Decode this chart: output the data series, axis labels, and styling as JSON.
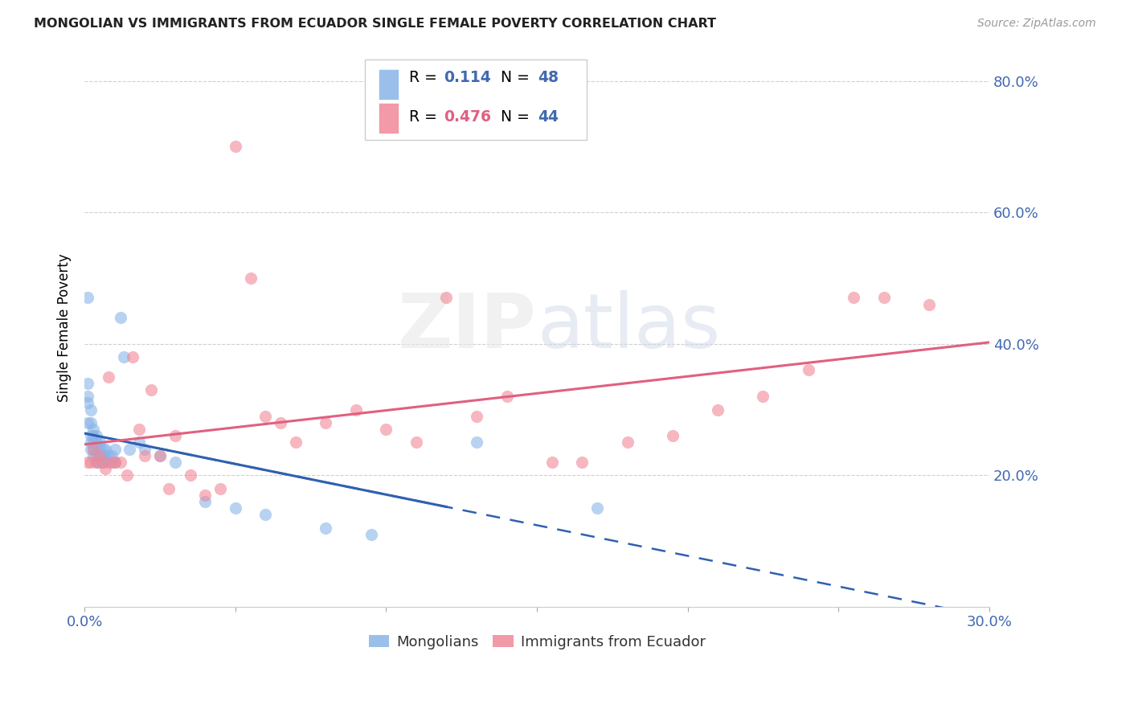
{
  "title": "MONGOLIAN VS IMMIGRANTS FROM ECUADOR SINGLE FEMALE POVERTY CORRELATION CHART",
  "source": "Source: ZipAtlas.com",
  "ylabel": "Single Female Poverty",
  "xlim": [
    0.0,
    0.3
  ],
  "ylim": [
    0.0,
    0.85
  ],
  "right_yticklabels": [
    "20.0%",
    "40.0%",
    "60.0%",
    "80.0%"
  ],
  "right_yticks": [
    0.2,
    0.4,
    0.6,
    0.8
  ],
  "grid_color": "#d0d0d0",
  "watermark": "ZIPatlas",
  "mongolian_color": "#8ab4e8",
  "ecuador_color": "#f08898",
  "trend_blue_color": "#3060b0",
  "trend_pink_color": "#e06080",
  "mongolian_x": [
    0.001,
    0.001,
    0.001,
    0.001,
    0.001,
    0.002,
    0.002,
    0.002,
    0.002,
    0.002,
    0.003,
    0.003,
    0.003,
    0.003,
    0.003,
    0.004,
    0.004,
    0.004,
    0.004,
    0.004,
    0.005,
    0.005,
    0.005,
    0.005,
    0.006,
    0.006,
    0.006,
    0.007,
    0.007,
    0.008,
    0.008,
    0.009,
    0.01,
    0.01,
    0.012,
    0.013,
    0.015,
    0.018,
    0.02,
    0.025,
    0.03,
    0.04,
    0.05,
    0.06,
    0.08,
    0.095,
    0.13,
    0.17
  ],
  "mongolian_y": [
    0.47,
    0.34,
    0.32,
    0.31,
    0.28,
    0.3,
    0.28,
    0.26,
    0.25,
    0.24,
    0.27,
    0.26,
    0.25,
    0.24,
    0.23,
    0.26,
    0.25,
    0.24,
    0.23,
    0.22,
    0.25,
    0.24,
    0.23,
    0.22,
    0.24,
    0.23,
    0.22,
    0.24,
    0.23,
    0.23,
    0.22,
    0.23,
    0.24,
    0.22,
    0.44,
    0.38,
    0.24,
    0.25,
    0.24,
    0.23,
    0.22,
    0.16,
    0.15,
    0.14,
    0.12,
    0.11,
    0.25,
    0.15
  ],
  "ecuador_x": [
    0.001,
    0.002,
    0.003,
    0.004,
    0.005,
    0.006,
    0.007,
    0.008,
    0.009,
    0.01,
    0.012,
    0.014,
    0.016,
    0.018,
    0.02,
    0.022,
    0.025,
    0.028,
    0.03,
    0.035,
    0.04,
    0.045,
    0.05,
    0.055,
    0.06,
    0.065,
    0.07,
    0.08,
    0.09,
    0.1,
    0.11,
    0.12,
    0.13,
    0.14,
    0.155,
    0.165,
    0.18,
    0.195,
    0.21,
    0.225,
    0.24,
    0.255,
    0.265,
    0.28
  ],
  "ecuador_y": [
    0.22,
    0.22,
    0.24,
    0.22,
    0.23,
    0.22,
    0.21,
    0.35,
    0.22,
    0.22,
    0.22,
    0.2,
    0.38,
    0.27,
    0.23,
    0.33,
    0.23,
    0.18,
    0.26,
    0.2,
    0.17,
    0.18,
    0.7,
    0.5,
    0.29,
    0.28,
    0.25,
    0.28,
    0.3,
    0.27,
    0.25,
    0.47,
    0.29,
    0.32,
    0.22,
    0.22,
    0.25,
    0.26,
    0.3,
    0.32,
    0.36,
    0.47,
    0.47,
    0.46
  ]
}
